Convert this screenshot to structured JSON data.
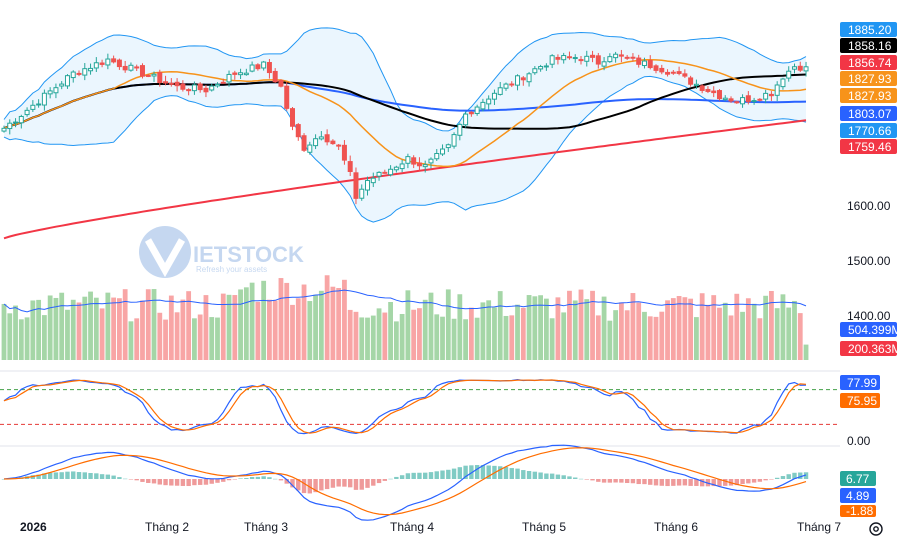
{
  "watermark": {
    "brand": "IETSTOCK",
    "sub": "Refresh your assets"
  },
  "colors": {
    "up": "#26a69a",
    "down": "#ef5350",
    "bb": "#2196f3",
    "bbFill": "#e3f2fd",
    "ma20": "#f7931a",
    "ma50": "#000000",
    "ma100": "#2962ff",
    "ma200": "#f23645",
    "volUp": "#a5d6a7",
    "volDown": "#f8a5a5",
    "volMA": "#2962ff",
    "k": "#2962ff",
    "d": "#ff6d00"
  },
  "axis": {
    "x_labels": [
      "2026",
      "Tháng 2",
      "Tháng 3",
      "Tháng 4",
      "Tháng 5",
      "Tháng 6",
      "Tháng 7"
    ],
    "y_price_ticks": [
      "1600.00",
      "1500.00",
      "1400.00"
    ],
    "stoch_tick": "0.00"
  },
  "price_tags": [
    {
      "text": "1885.20",
      "value": 1885.2,
      "color": "#2196f3"
    },
    {
      "text": "1858.16",
      "value": 1858.16,
      "color": "#000000"
    },
    {
      "text": "1856.74",
      "value": 1856.74,
      "color": "#f23645"
    },
    {
      "text": "1827.93",
      "value": 1827.93,
      "color": "#f7931a"
    },
    {
      "text": "1827.93",
      "value": 1827.93,
      "color": "#f7931a"
    },
    {
      "text": "1803.07",
      "value": 1803.07,
      "color": "#2962ff"
    },
    {
      "text": "1770.66",
      "value": 1770.66,
      "color": "#2196f3"
    },
    {
      "text": "1759.46",
      "value": 1759.46,
      "color": "#f23645"
    }
  ],
  "volume_tags": [
    {
      "text": "504.399M",
      "color": "#2962ff"
    },
    {
      "text": "200.363M",
      "color": "#f23645"
    }
  ],
  "stoch_tags": [
    {
      "text": "77.99",
      "color": "#2962ff"
    },
    {
      "text": "75.95",
      "color": "#ff6d00"
    }
  ],
  "macd_tags": [
    {
      "text": "6.77",
      "color": "#26a69a"
    },
    {
      "text": "4.89",
      "color": "#2962ff"
    },
    {
      "text": "-1.88",
      "color": "#ff6d00"
    }
  ],
  "chart_data": {
    "type": "candlestick",
    "xlabel": "",
    "ylabel": "",
    "ylim": [
      1490,
      1885
    ],
    "months": [
      "2026",
      "Tháng 2",
      "Tháng 3",
      "Tháng 4",
      "Tháng 5",
      "Tháng 6",
      "Tháng 7"
    ],
    "close_anchors": [
      {
        "i": 0,
        "v": 1745
      },
      {
        "i": 6,
        "v": 1795
      },
      {
        "i": 12,
        "v": 1845
      },
      {
        "i": 18,
        "v": 1870
      },
      {
        "i": 24,
        "v": 1845
      },
      {
        "i": 30,
        "v": 1820
      },
      {
        "i": 35,
        "v": 1815
      },
      {
        "i": 40,
        "v": 1845
      },
      {
        "i": 45,
        "v": 1860
      },
      {
        "i": 48,
        "v": 1820
      },
      {
        "i": 50,
        "v": 1745
      },
      {
        "i": 52,
        "v": 1710
      },
      {
        "i": 55,
        "v": 1735
      },
      {
        "i": 58,
        "v": 1710
      },
      {
        "i": 60,
        "v": 1660
      },
      {
        "i": 61,
        "v": 1620
      },
      {
        "i": 63,
        "v": 1650
      },
      {
        "i": 66,
        "v": 1665
      },
      {
        "i": 70,
        "v": 1690
      },
      {
        "i": 73,
        "v": 1675
      },
      {
        "i": 77,
        "v": 1710
      },
      {
        "i": 80,
        "v": 1770
      },
      {
        "i": 85,
        "v": 1810
      },
      {
        "i": 90,
        "v": 1840
      },
      {
        "i": 95,
        "v": 1870
      },
      {
        "i": 100,
        "v": 1875
      },
      {
        "i": 103,
        "v": 1865
      },
      {
        "i": 105,
        "v": 1880
      },
      {
        "i": 108,
        "v": 1870
      },
      {
        "i": 112,
        "v": 1860
      },
      {
        "i": 115,
        "v": 1850
      },
      {
        "i": 118,
        "v": 1835
      },
      {
        "i": 121,
        "v": 1820
      },
      {
        "i": 124,
        "v": 1805
      },
      {
        "i": 127,
        "v": 1795
      },
      {
        "i": 130,
        "v": 1800
      },
      {
        "i": 133,
        "v": 1810
      },
      {
        "i": 135,
        "v": 1840
      },
      {
        "i": 137,
        "v": 1858
      },
      {
        "i": 139,
        "v": 1857
      }
    ],
    "bollinger": {
      "upper_last": 1885.2,
      "lower_last": 1770.66
    },
    "ma_last": {
      "ma20": 1827.93,
      "ma50": 1858.16,
      "ma100": 1803.07,
      "ma200": 1759.46
    },
    "volume": {
      "ma_last": 504.399,
      "last": 200.363,
      "unit": "M"
    },
    "stochastic": {
      "k_last": 77.99,
      "d_last": 75.95,
      "levels": [
        80,
        20
      ]
    },
    "macd": {
      "hist_last": 6.77,
      "macd_last": 4.89,
      "signal_last": -1.88
    }
  }
}
